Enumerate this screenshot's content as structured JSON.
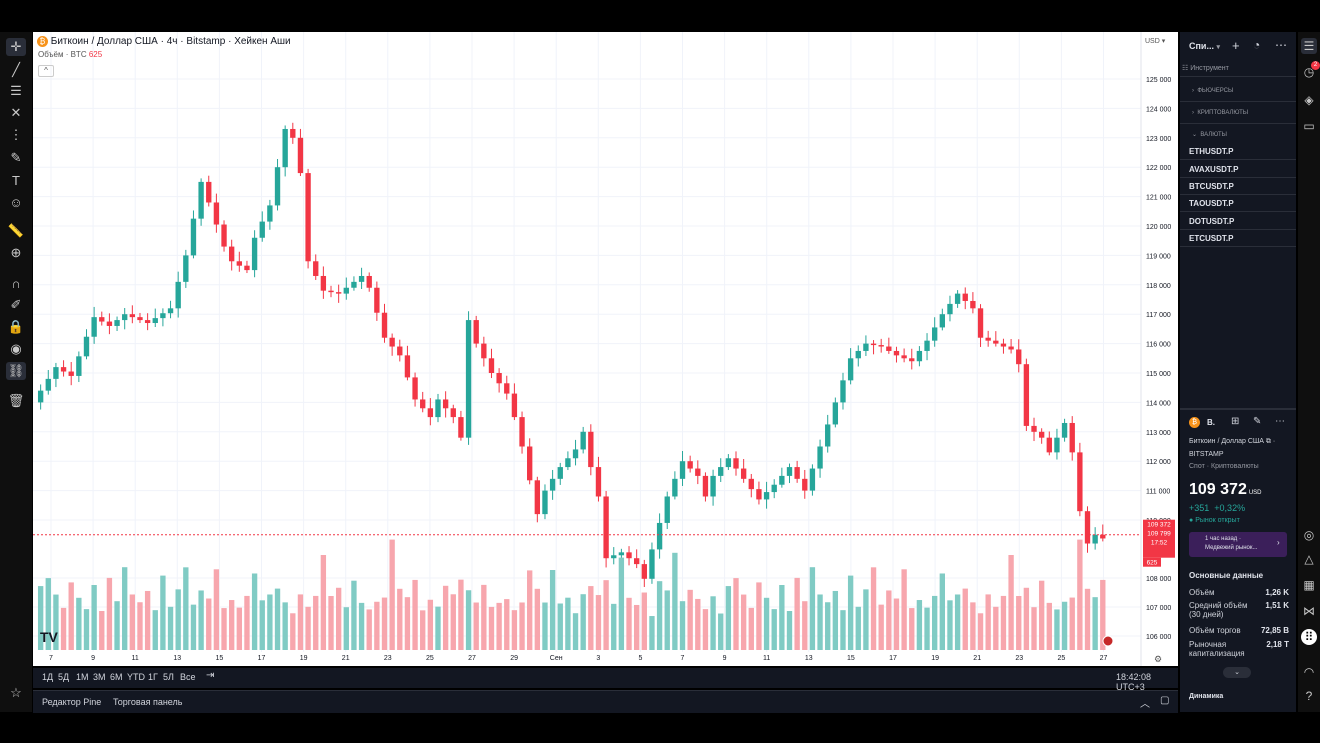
{
  "header": {
    "symbol_badge": "₿",
    "title": "Биткоин / Доллар США · 4ч · Bitstamp · Хейкен Аши",
    "volume_label": "Объём · BTC",
    "volume_value": "625",
    "currency": "USD"
  },
  "chart_data": {
    "type": "candlestick",
    "chart_style": "Heikin Ashi",
    "interval": "4h",
    "colors": {
      "up": "#26a69a",
      "down": "#f23645",
      "vol_up": "#80cbc4",
      "vol_down": "#f7a6ad"
    },
    "y_ticks": [
      "125 000",
      "124 000",
      "123 000",
      "122 000",
      "121 000",
      "120 000",
      "119 000",
      "118 000",
      "117 000",
      "116 000",
      "115 000",
      "114 000",
      "113 000",
      "112 000",
      "111 000",
      "110 000",
      "108 000",
      "107 000",
      "106 000"
    ],
    "x_ticks": [
      "7",
      "9",
      "11",
      "13",
      "15",
      "17",
      "19",
      "21",
      "23",
      "25",
      "27",
      "29",
      "Сен",
      "3",
      "5",
      "7",
      "9",
      "11",
      "13",
      "15",
      "17",
      "19",
      "21",
      "23",
      "25",
      "27"
    ],
    "price_path": [
      [
        0,
        114000
      ],
      [
        3,
        115200
      ],
      [
        5,
        114900
      ],
      [
        8,
        116900
      ],
      [
        10,
        116600
      ],
      [
        12,
        117000
      ],
      [
        15,
        116700
      ],
      [
        18,
        117200
      ],
      [
        20,
        119000
      ],
      [
        22,
        121500
      ],
      [
        23,
        120800
      ],
      [
        25,
        119300
      ],
      [
        26,
        118800
      ],
      [
        28,
        118500
      ],
      [
        29,
        119600
      ],
      [
        31,
        120700
      ],
      [
        33,
        123300
      ],
      [
        34,
        123000
      ],
      [
        35,
        121800
      ],
      [
        36,
        118800
      ],
      [
        38,
        117800
      ],
      [
        40,
        117700
      ],
      [
        43,
        118300
      ],
      [
        44,
        117900
      ],
      [
        46,
        116200
      ],
      [
        48,
        115600
      ],
      [
        50,
        114100
      ],
      [
        52,
        113500
      ],
      [
        53,
        114100
      ],
      [
        55,
        113500
      ],
      [
        56,
        112800
      ],
      [
        57,
        116800
      ],
      [
        58,
        116000
      ],
      [
        60,
        115000
      ],
      [
        62,
        114300
      ],
      [
        63,
        113500
      ],
      [
        64,
        112500
      ],
      [
        66,
        110200
      ],
      [
        67,
        111000
      ],
      [
        69,
        111800
      ],
      [
        71,
        112400
      ],
      [
        72,
        113000
      ],
      [
        73,
        111800
      ],
      [
        74,
        110800
      ],
      [
        75,
        108700
      ],
      [
        77,
        108900
      ],
      [
        79,
        108500
      ],
      [
        80,
        108000
      ],
      [
        81,
        109000
      ],
      [
        83,
        110800
      ],
      [
        85,
        112000
      ],
      [
        87,
        111500
      ],
      [
        88,
        110800
      ],
      [
        89,
        111500
      ],
      [
        91,
        112100
      ],
      [
        93,
        111400
      ],
      [
        95,
        110700
      ],
      [
        97,
        111200
      ],
      [
        99,
        111800
      ],
      [
        101,
        111000
      ],
      [
        103,
        112500
      ],
      [
        105,
        114000
      ],
      [
        107,
        115500
      ],
      [
        109,
        116000
      ],
      [
        111,
        115900
      ],
      [
        113,
        115600
      ],
      [
        115,
        115400
      ],
      [
        117,
        116100
      ],
      [
        119,
        117000
      ],
      [
        121,
        117700
      ],
      [
        123,
        117200
      ],
      [
        124,
        116200
      ],
      [
        126,
        116000
      ],
      [
        128,
        115800
      ],
      [
        129,
        115300
      ],
      [
        130,
        113200
      ],
      [
        132,
        112800
      ],
      [
        133,
        112300
      ],
      [
        135,
        113300
      ],
      [
        136,
        112300
      ],
      [
        137,
        110300
      ],
      [
        138,
        109200
      ],
      [
        139,
        109500
      ],
      [
        140,
        109372
      ]
    ],
    "volume_pattern": [
      0.22,
      0.28,
      0.35,
      0.26,
      0.18,
      0.4,
      0.3,
      0.22,
      0.5,
      0.25,
      0.33,
      0.2,
      0.45,
      0.28,
      0.24,
      0.36,
      0.21,
      0.6,
      0.3,
      0.26,
      0.42,
      0.19,
      0.31,
      0.27,
      0.55,
      0.23,
      0.34,
      0.29,
      0.22,
      0.38
    ],
    "last_price": "109 372",
    "last_price_2": "109 799",
    "countdown": "17:52",
    "last_volume": "625",
    "y_range": [
      105500,
      125500
    ]
  },
  "toolbar_bottom": {
    "ranges": [
      "1Д",
      "5Д",
      "1М",
      "3М",
      "6М",
      "YTD",
      "1Г",
      "5Л",
      "Все"
    ],
    "time": "18:42:08 UTC+3",
    "tab_pine": "Редактор Pine",
    "tab_trade": "Торговая панель"
  },
  "watchlist": {
    "title": "Спи...",
    "column": "Инструмент",
    "groups": [
      "ФЬЮЧЕРСЫ",
      "КРИПТОВАЛЮТЫ",
      "ВАЛЮТЫ"
    ],
    "items": [
      "ETHUSDT.P",
      "AVAXUSDT.P",
      "BTCUSDT.P",
      "TAOUSDT.P",
      "DOTUSDT.P",
      "ETCUSDT.P"
    ]
  },
  "details": {
    "short": "B.",
    "name": "Биткоин / Доллар США",
    "exchange": "BITSTAMP",
    "type": "Спот · Криптовалюты",
    "price": "109 372",
    "price_ccy": "USD",
    "change": "+351",
    "change_pct": "+0,32%",
    "market_status": "Рынок открыт",
    "news_time": "1 час назад ·",
    "news_text": "Медвежий рынок...",
    "section_title": "Основные данные",
    "stats": [
      {
        "label": "Объём",
        "value": "1,26 K"
      },
      {
        "label": "Средний объём (30 дней)",
        "value": "1,51 K"
      },
      {
        "label": "Объём торгов",
        "value": "72,85 B"
      },
      {
        "label": "Рыночная капитализация",
        "value": "2,18 T"
      }
    ],
    "dynamics": "Динамика",
    "notif_badge": "2"
  }
}
